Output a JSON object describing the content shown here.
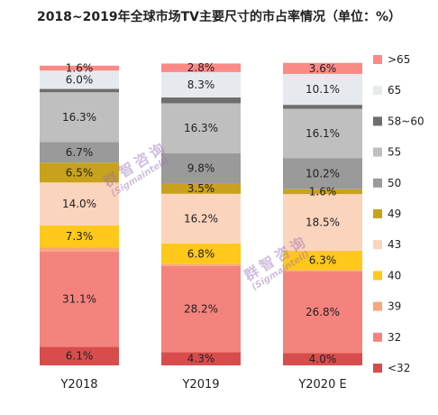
{
  "chart_data": {
    "type": "bar",
    "stacked": true,
    "percent": true,
    "title": "2018~2019年全球市场TV主要尺寸的市占率情况（单位：%）",
    "categories": [
      "Y2018",
      "Y2019",
      "Y2020 E"
    ],
    "series": [
      {
        "name": "<32",
        "color": "#d94c4c",
        "values": [
          6.1,
          4.3,
          4.0
        ]
      },
      {
        "name": "32",
        "color": "#f4837d",
        "values": [
          31.1,
          28.2,
          26.8
        ]
      },
      {
        "name": "39",
        "color": "#f7a77e",
        "values": [
          1.3,
          0.6,
          0.4
        ]
      },
      {
        "name": "40",
        "color": "#ffc81a",
        "values": [
          7.3,
          6.8,
          6.3
        ]
      },
      {
        "name": "43",
        "color": "#fbd4bd",
        "values": [
          14.0,
          16.2,
          18.5
        ]
      },
      {
        "name": "49",
        "color": "#c9a21d",
        "values": [
          6.5,
          3.5,
          1.6
        ]
      },
      {
        "name": "50",
        "color": "#9a9a9a",
        "values": [
          6.7,
          9.8,
          10.2
        ]
      },
      {
        "name": "55",
        "color": "#bfbfbf",
        "values": [
          16.3,
          16.3,
          16.1
        ]
      },
      {
        "name": "58~60",
        "color": "#6e6e6e",
        "values": [
          1.1,
          1.9,
          1.3
        ]
      },
      {
        "name": "65",
        "color": "#e6e9ee",
        "values": [
          6.0,
          8.3,
          10.1
        ]
      },
      {
        "name": ">65",
        "color": "#fb8a86",
        "values": [
          1.6,
          2.8,
          3.6
        ]
      }
    ],
    "labels": {
      "Y2018": {
        "<32": "6.1%",
        "32": "31.1%",
        "40": "7.3%",
        "43": "14.0%",
        "49": "6.5%",
        "50": "6.7%",
        "55": "16.3%",
        "65": "6.0%",
        ">65": "1.6%"
      },
      "Y2019": {
        "<32": "4.3%",
        "32": "28.2%",
        "40": "6.8%",
        "43": "16.2%",
        "49": "3.5%",
        "50": "9.8%",
        "55": "16.3%",
        "65": "8.3%",
        ">65": "2.8%"
      },
      "Y2020 E": {
        "<32": "4.0%",
        "32": "26.8%",
        "40": "6.3%",
        "43": "18.5%",
        "49": "1.6%",
        "50": "10.2%",
        "55": "16.1%",
        "65": "10.1%",
        ">65": "3.6%"
      }
    },
    "ylim": [
      0,
      100
    ],
    "legend_position": "right",
    "legend_order": [
      ">65",
      "65",
      "58~60",
      "55",
      "50",
      "49",
      "43",
      "40",
      "39",
      "32",
      "<32"
    ]
  },
  "watermark": {
    "cn": "群智咨询",
    "en": "(Sigmaintell)"
  }
}
